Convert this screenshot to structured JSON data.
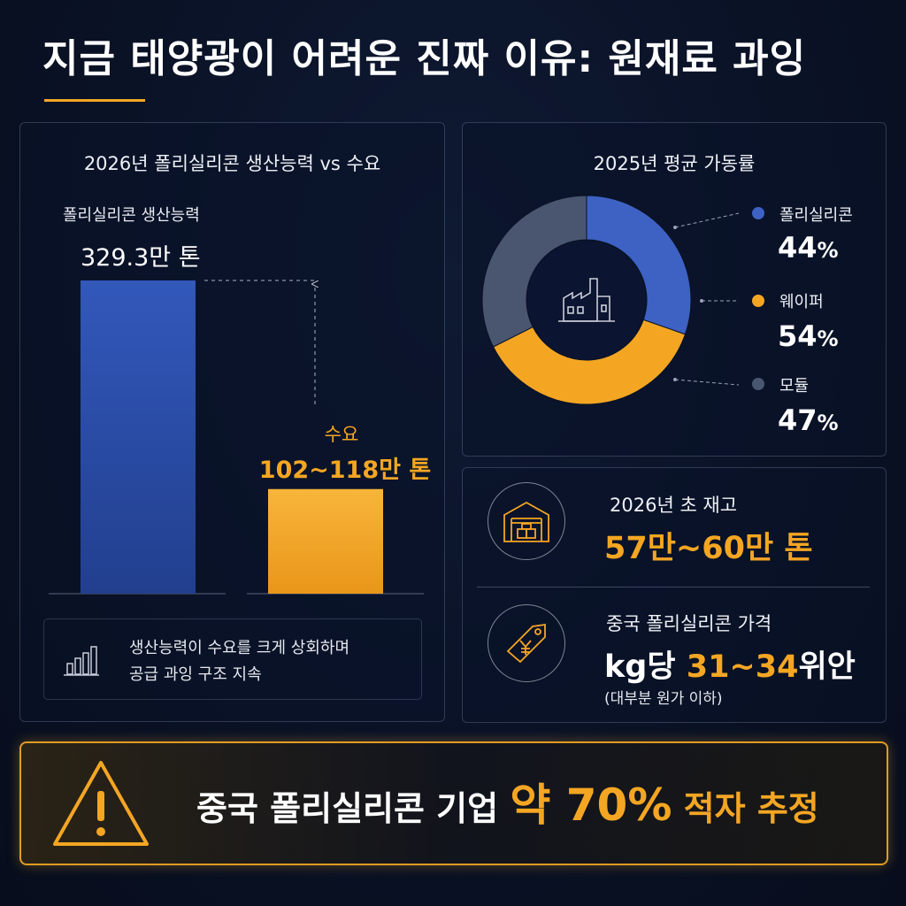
{
  "title": "지금 태양광이 어려운 진짜 이유: 원재료 과잉",
  "capacity_chart": {
    "title": "2026년 폴리실리콘 생산능력 vs 수요",
    "capacity_label": "폴리실리콘 생산능력",
    "capacity_value_text": "329.3만 톤",
    "demand_label": "수요",
    "demand_value_text": "102~118만 톤",
    "note_lines": [
      "생산능력이 수요를 크게 상회하며",
      "공급 과잉 구조 지속"
    ]
  },
  "utilization_chart": {
    "title": "2025년 평균 가동률",
    "items": [
      {
        "name": "폴리실리콘",
        "value_text": "44",
        "unit": "%"
      },
      {
        "name": "웨이퍼",
        "value_text": "54",
        "unit": "%"
      },
      {
        "name": "모듈",
        "value_text": "47",
        "unit": "%"
      }
    ]
  },
  "inventory": {
    "label": "2026년 초 재고",
    "value_text": "57만~60만 톤"
  },
  "price": {
    "label": "중국 폴리실리콘 가격",
    "value_prefix": "kg당 ",
    "value_range": "31~34",
    "value_unit": "위안",
    "note": "(대부분 원가 이하)"
  },
  "banner": {
    "prefix": "중국 폴리실리콘 기업 ",
    "highlight": "약 70%",
    "suffix": " 적자 추정"
  },
  "colors": {
    "accent": "#f4a623",
    "blue": "#3d62c4",
    "gray": "#4a5570",
    "background": "#0a1226"
  },
  "chart_data": [
    {
      "type": "bar",
      "title": "2026년 폴리실리콘 생산능력 vs 수요",
      "categories": [
        "폴리실리콘 생산능력",
        "수요"
      ],
      "values": [
        329.3,
        110
      ],
      "value_labels": [
        "329.3만 톤",
        "102~118만 톤"
      ],
      "demand_range": [
        102,
        118
      ],
      "unit": "만 톤",
      "colors": [
        "#2f4fa8",
        "#f4a623"
      ],
      "ylim": [
        0,
        329.3
      ],
      "grid": false
    },
    {
      "type": "pie",
      "title": "2025년 평균 가동률",
      "categories": [
        "폴리실리콘",
        "웨이퍼",
        "모듈"
      ],
      "values": [
        44,
        54,
        47
      ],
      "unit": "%",
      "colors": [
        "#3d62c4",
        "#f4a623",
        "#4a5570"
      ],
      "legend": "right",
      "donut": true
    }
  ]
}
